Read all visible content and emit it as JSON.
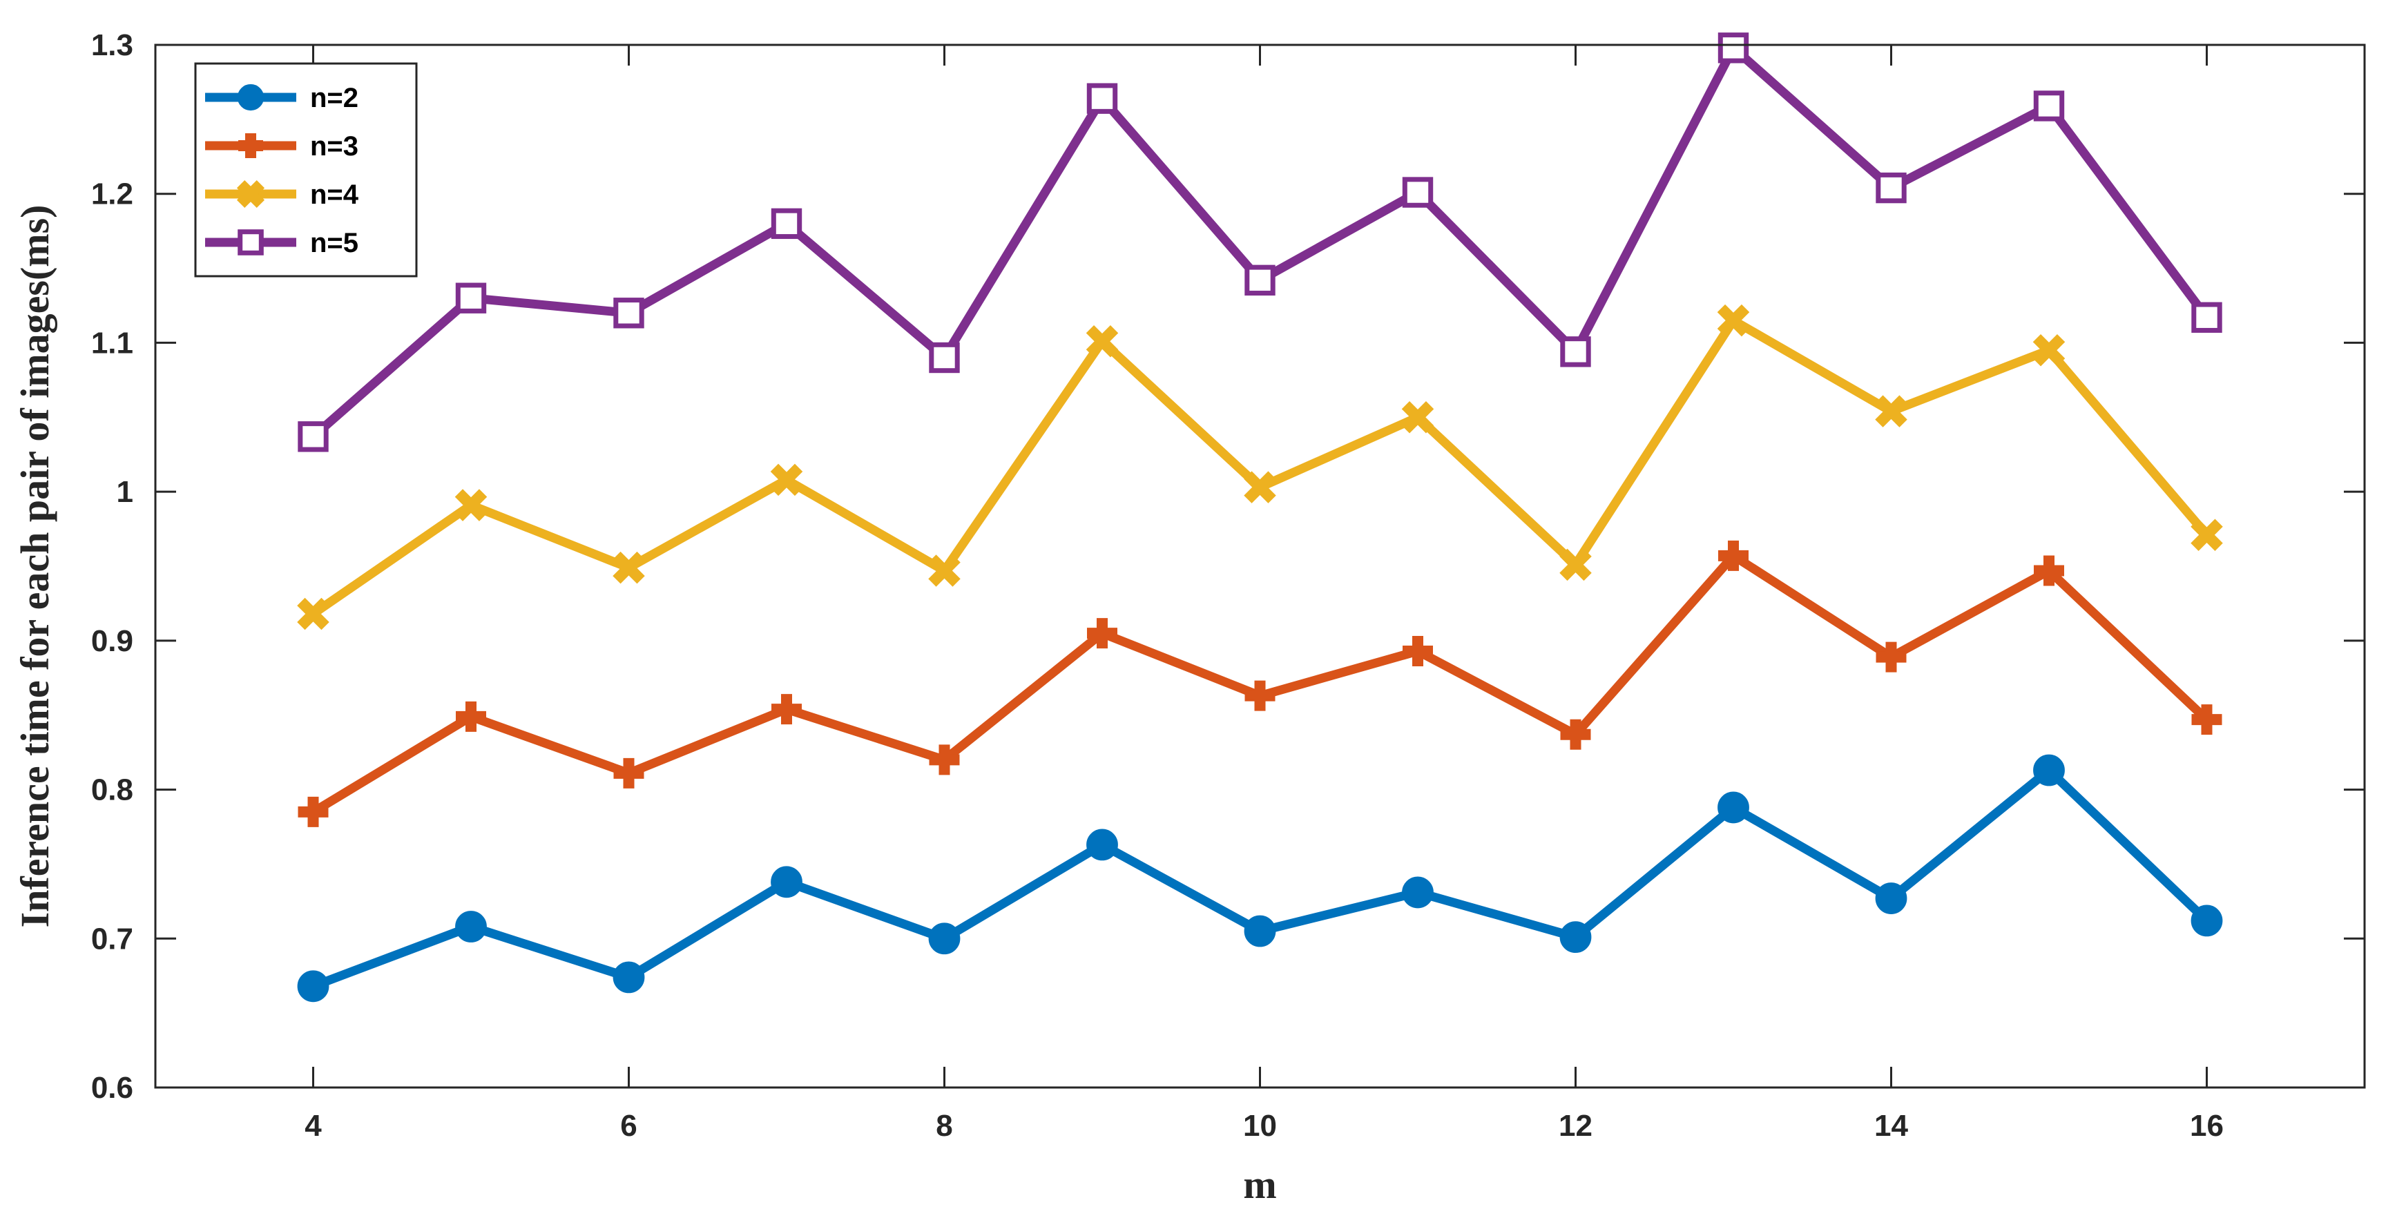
{
  "chart_data": {
    "type": "line",
    "xlabel": "m",
    "ylabel": "Inference time for each pair of images(ms)",
    "xlim": [
      3,
      17
    ],
    "ylim": [
      0.6,
      1.3
    ],
    "xticks": [
      4,
      6,
      8,
      10,
      12,
      14,
      16
    ],
    "yticks": [
      0.6,
      0.7,
      0.8,
      0.9,
      1.0,
      1.1,
      1.2,
      1.3
    ],
    "ytick_labels": [
      "0.6",
      "0.7",
      "0.8",
      "0.9",
      "1",
      "1.1",
      "1.2",
      "1.3"
    ],
    "grid": false,
    "legend_position": "top-left",
    "x": [
      4,
      5,
      6,
      7,
      8,
      9,
      10,
      11,
      12,
      13,
      14,
      15,
      16
    ],
    "series": [
      {
        "name": "n=2",
        "color": "#0072BD",
        "marker": "circle",
        "values": [
          0.668,
          0.708,
          0.674,
          0.738,
          0.7,
          0.763,
          0.705,
          0.731,
          0.701,
          0.788,
          0.727,
          0.813,
          0.712
        ]
      },
      {
        "name": "n=3",
        "color": "#D95319",
        "marker": "plus",
        "values": [
          0.785,
          0.849,
          0.811,
          0.854,
          0.82,
          0.905,
          0.863,
          0.893,
          0.837,
          0.957,
          0.889,
          0.947,
          0.847
        ]
      },
      {
        "name": "n=4",
        "color": "#EDB120",
        "marker": "x",
        "values": [
          0.918,
          0.991,
          0.949,
          1.008,
          0.947,
          1.101,
          1.003,
          1.05,
          0.951,
          1.115,
          1.054,
          1.095,
          0.971
        ]
      },
      {
        "name": "n=5",
        "color": "#7E2F8E",
        "marker": "square",
        "values": [
          1.037,
          1.13,
          1.12,
          1.18,
          1.09,
          1.264,
          1.142,
          1.201,
          1.094,
          1.298,
          1.204,
          1.259,
          1.117
        ]
      }
    ]
  }
}
